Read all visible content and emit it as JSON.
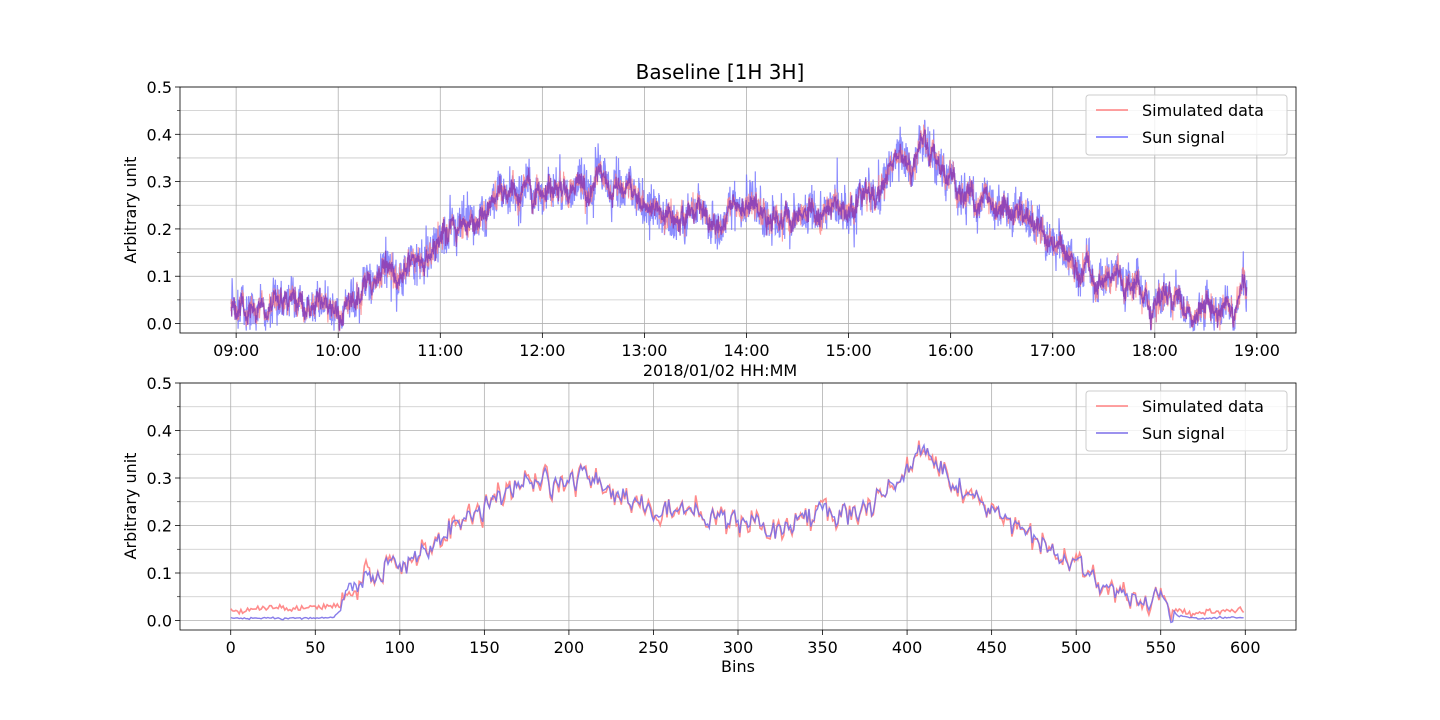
{
  "chart_data": [
    {
      "type": "line",
      "title": "Baseline [1H 3H]",
      "xlabel": "2018/01/02 HH:MM",
      "ylabel": "Arbitrary unit",
      "x_tick_labels": [
        "09:00",
        "10:00",
        "11:00",
        "12:00",
        "13:00",
        "14:00",
        "15:00",
        "16:00",
        "17:00",
        "18:00",
        "19:00"
      ],
      "xlim": [
        "08:27",
        "19:23"
      ],
      "ylim": [
        -0.02,
        0.5
      ],
      "y_ticks": [
        0.0,
        0.1,
        0.2,
        0.3,
        0.4,
        0.5
      ],
      "y_tick_labels": [
        "0.0",
        "0.1",
        "0.2",
        "0.3",
        "0.4",
        "0.5"
      ],
      "grid": true,
      "legend_position": "top-right",
      "x_hours": [
        8.95,
        9.5,
        10.0,
        10.1,
        10.3,
        10.6,
        10.9,
        11.0,
        11.3,
        11.6,
        11.9,
        12.1,
        12.3,
        12.6,
        12.9,
        13.0,
        13.4,
        13.6,
        13.9,
        14.0,
        14.2,
        14.5,
        14.8,
        15.0,
        15.3,
        15.5,
        15.75,
        16.0,
        16.2,
        16.5,
        16.8,
        17.0,
        17.3,
        17.6,
        17.9,
        18.0,
        18.5,
        18.9
      ],
      "series": [
        {
          "name": "Simulated data",
          "color": "#ff8080",
          "values": [
            0.035,
            0.035,
            0.036,
            0.05,
            0.08,
            0.12,
            0.15,
            0.17,
            0.22,
            0.25,
            0.28,
            0.3,
            0.3,
            0.29,
            0.26,
            0.24,
            0.235,
            0.23,
            0.24,
            0.22,
            0.21,
            0.22,
            0.23,
            0.25,
            0.29,
            0.34,
            0.37,
            0.32,
            0.27,
            0.25,
            0.21,
            0.16,
            0.11,
            0.08,
            0.05,
            0.045,
            0.04,
            0.04
          ]
        },
        {
          "name": "Sun signal",
          "color": "#7070ff",
          "values": [
            0.035,
            0.035,
            0.036,
            0.05,
            0.08,
            0.12,
            0.15,
            0.17,
            0.22,
            0.25,
            0.28,
            0.3,
            0.3,
            0.29,
            0.26,
            0.24,
            0.235,
            0.23,
            0.24,
            0.22,
            0.21,
            0.22,
            0.23,
            0.25,
            0.29,
            0.34,
            0.37,
            0.32,
            0.27,
            0.25,
            0.21,
            0.16,
            0.11,
            0.08,
            0.05,
            0.045,
            0.04,
            0.04
          ]
        }
      ]
    },
    {
      "type": "line",
      "title": "",
      "xlabel": "Bins",
      "ylabel": "Arbitrary unit",
      "xlim": [
        -30,
        630
      ],
      "x_ticks": [
        0,
        50,
        100,
        150,
        200,
        250,
        300,
        350,
        400,
        450,
        500,
        550,
        600
      ],
      "x_tick_labels": [
        "0",
        "50",
        "100",
        "150",
        "200",
        "250",
        "300",
        "350",
        "400",
        "450",
        "500",
        "550",
        "600"
      ],
      "ylim": [
        -0.02,
        0.5
      ],
      "y_ticks": [
        0.0,
        0.1,
        0.2,
        0.3,
        0.4,
        0.5
      ],
      "y_tick_labels": [
        "0.0",
        "0.1",
        "0.2",
        "0.3",
        "0.4",
        "0.5"
      ],
      "grid": true,
      "legend_position": "top-right",
      "x": [
        0,
        10,
        20,
        30,
        40,
        50,
        60,
        65,
        70,
        75,
        80,
        90,
        100,
        110,
        120,
        130,
        140,
        150,
        160,
        170,
        180,
        190,
        200,
        210,
        220,
        230,
        240,
        250,
        260,
        270,
        280,
        290,
        300,
        310,
        320,
        330,
        340,
        350,
        360,
        370,
        380,
        390,
        400,
        405,
        410,
        420,
        430,
        440,
        450,
        460,
        470,
        480,
        490,
        500,
        510,
        520,
        530,
        540,
        550,
        560,
        570,
        580,
        590,
        599
      ],
      "series": [
        {
          "name": "Simulated data",
          "color": "#ff8080",
          "values": [
            0.02,
            0.02,
            0.03,
            0.025,
            0.025,
            0.03,
            0.025,
            0.03,
            0.06,
            0.04,
            0.1,
            0.11,
            0.12,
            0.14,
            0.15,
            0.19,
            0.22,
            0.24,
            0.25,
            0.28,
            0.29,
            0.29,
            0.3,
            0.3,
            0.29,
            0.27,
            0.25,
            0.23,
            0.24,
            0.23,
            0.22,
            0.21,
            0.21,
            0.21,
            0.19,
            0.2,
            0.22,
            0.23,
            0.22,
            0.23,
            0.25,
            0.28,
            0.32,
            0.35,
            0.37,
            0.32,
            0.28,
            0.26,
            0.23,
            0.22,
            0.2,
            0.16,
            0.13,
            0.11,
            0.09,
            0.07,
            0.05,
            0.045,
            0.05,
            0.02,
            0.015,
            0.018,
            0.02,
            0.02
          ]
        },
        {
          "name": "Sun signal",
          "color": "#7b6fe8",
          "values": [
            0.005,
            0.004,
            0.006,
            0.004,
            0.005,
            0.005,
            0.006,
            0.02,
            0.08,
            0.05,
            0.09,
            0.11,
            0.12,
            0.14,
            0.15,
            0.19,
            0.22,
            0.24,
            0.25,
            0.28,
            0.29,
            0.29,
            0.3,
            0.3,
            0.29,
            0.27,
            0.25,
            0.23,
            0.24,
            0.23,
            0.22,
            0.21,
            0.21,
            0.21,
            0.19,
            0.2,
            0.22,
            0.23,
            0.22,
            0.23,
            0.25,
            0.28,
            0.32,
            0.35,
            0.37,
            0.32,
            0.28,
            0.26,
            0.23,
            0.22,
            0.2,
            0.16,
            0.13,
            0.11,
            0.09,
            0.07,
            0.05,
            0.045,
            0.05,
            0.01,
            0.005,
            0.005,
            0.006,
            0.006
          ]
        }
      ]
    }
  ]
}
